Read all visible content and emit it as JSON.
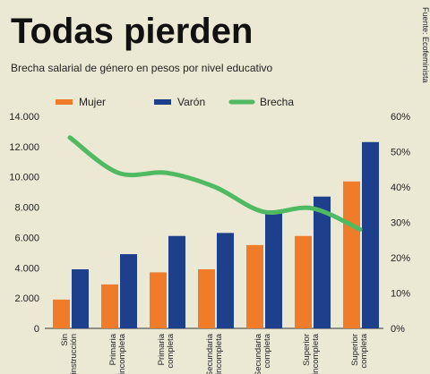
{
  "chart_data": {
    "type": "bar",
    "title": "Todas pierden",
    "subtitle": "Brecha salarial de género en pesos por nivel educativo",
    "source": "Fuente: Ecofeminista",
    "categories": [
      [
        "Sin",
        "instrucción"
      ],
      [
        "Primaria",
        "incompleta"
      ],
      [
        "Primaria",
        "completa"
      ],
      [
        "Secundaria",
        "incompleta"
      ],
      [
        "Secundaria",
        "completa"
      ],
      [
        "Superior",
        "incompleta"
      ],
      [
        "Superior",
        "completa"
      ]
    ],
    "series": [
      {
        "name": "Mujer",
        "type": "bar",
        "axis": "left",
        "color": "#f07c2a",
        "values": [
          1900,
          2900,
          3700,
          3900,
          5500,
          6100,
          9700
        ]
      },
      {
        "name": "Varón",
        "type": "bar",
        "axis": "left",
        "color": "#1e3f8c",
        "values": [
          3900,
          4900,
          6100,
          6300,
          7700,
          8700,
          12300
        ]
      },
      {
        "name": "Brecha",
        "type": "line",
        "axis": "right",
        "color": "#4fba62",
        "values": [
          54,
          44,
          44,
          40,
          33,
          34,
          28
        ]
      }
    ],
    "y_left": {
      "range": [
        0,
        14000
      ],
      "ticks": [
        0,
        2000,
        4000,
        6000,
        8000,
        10000,
        12000,
        14000
      ],
      "tick_labels": [
        "0",
        "2.000",
        "4.000",
        "6.000",
        "8.000",
        "10.000",
        "12.000",
        "14.000"
      ]
    },
    "y_right": {
      "range": [
        0,
        60
      ],
      "ticks": [
        0,
        10,
        20,
        30,
        40,
        50,
        60
      ],
      "tick_labels": [
        "0%",
        "10%",
        "20%",
        "30%",
        "40%",
        "50%",
        "60%"
      ]
    },
    "grid": false,
    "legend_position": "top"
  }
}
